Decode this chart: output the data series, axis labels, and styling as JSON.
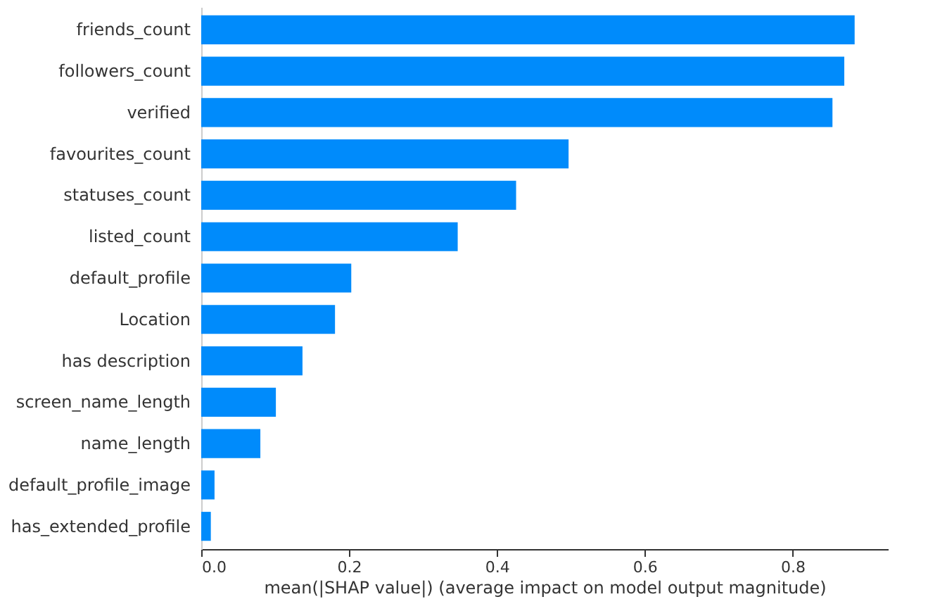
{
  "chart_data": {
    "type": "bar",
    "orientation": "horizontal",
    "xlabel": "mean(|SHAP value|) (average impact on model output magnitude)",
    "categories": [
      "friends_count",
      "followers_count",
      "verified",
      "favourites_count",
      "statuses_count",
      "listed_count",
      "default_profile",
      "Location",
      "has description",
      "screen_name_length",
      "name_length",
      "default_profile_image",
      "has_extended_profile"
    ],
    "values": [
      0.884,
      0.87,
      0.854,
      0.497,
      0.426,
      0.347,
      0.203,
      0.181,
      0.137,
      0.101,
      0.08,
      0.018,
      0.013
    ],
    "color": "#008bfb",
    "xlim": [
      0,
      0.929
    ],
    "xticks": [
      {
        "value": 0,
        "label": "0.0"
      },
      {
        "value": 0.2,
        "label": "0.2"
      },
      {
        "value": 0.4,
        "label": "0.4"
      },
      {
        "value": 0.6,
        "label": "0.6"
      },
      {
        "value": 0.8,
        "label": "0.8"
      }
    ],
    "grid": false
  }
}
